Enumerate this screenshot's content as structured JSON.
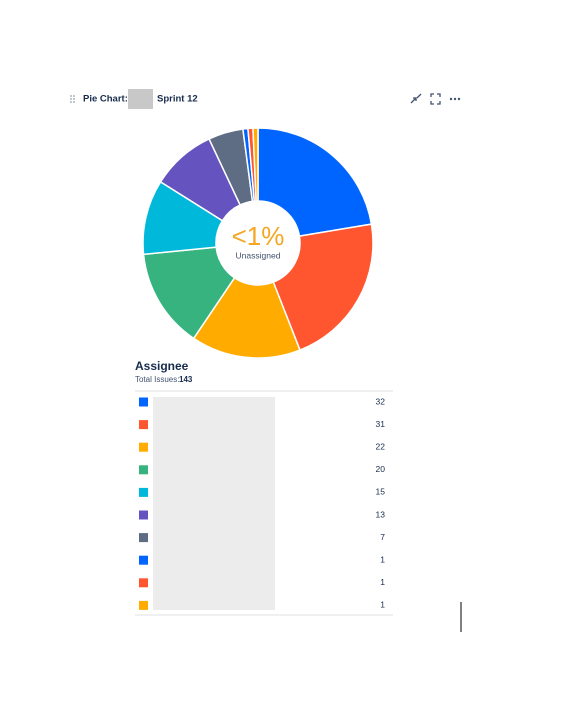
{
  "header": {
    "title_start": "Pie Chart: M",
    "title_end": "Sprint 12"
  },
  "chart_data": {
    "type": "pie",
    "categories": [
      null,
      null,
      null,
      null,
      null,
      null,
      null,
      null,
      null,
      null
    ],
    "values": [
      32,
      31,
      22,
      20,
      15,
      13,
      7,
      1,
      1,
      1
    ],
    "colors": [
      "#0065ff",
      "#ff5630",
      "#ffab00",
      "#36b37e",
      "#00b8d9",
      "#6554c0",
      "#5e6c84",
      "#0065ff",
      "#ff5630",
      "#ffab00"
    ],
    "donut": true,
    "center_value": "<1%",
    "center_label": "Unassigned",
    "legend_title": "Assignee",
    "total_label": "Total Issues:",
    "total": 143
  }
}
